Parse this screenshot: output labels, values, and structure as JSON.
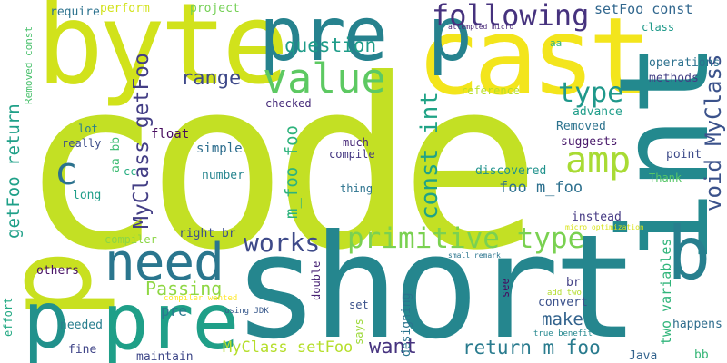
{
  "colors": {
    "background": "#ffffff",
    "lime": "#c3e024",
    "yellow": "#f3e51c",
    "teal": "#25868e",
    "green": "#2eb37c",
    "bright_green": "#5dc962",
    "purple": "#3f2f7f",
    "indigo": "#46327e",
    "blue": "#31668d",
    "yellow_green": "#a8db34"
  },
  "words": [
    {
      "text": "code",
      "color": "#c3e024"
    },
    {
      "text": "short",
      "color": "#25868e"
    },
    {
      "text": "byte",
      "color": "#d1e21b"
    },
    {
      "text": "cast",
      "color": "#f3e51c"
    },
    {
      "text": "int",
      "color": "#23898e"
    },
    {
      "text": "p",
      "color": "#c8e020"
    },
    {
      "text": "pre p",
      "color": "#26828e"
    },
    {
      "text": "pre",
      "color": "#1f9f88"
    },
    {
      "text": "p",
      "color": "#21918c"
    },
    {
      "text": "b",
      "color": "#277f8e"
    },
    {
      "text": "need",
      "color": "#2a768e"
    },
    {
      "text": "value",
      "color": "#5dc962"
    },
    {
      "text": "following",
      "color": "#46327e"
    },
    {
      "text": "amp",
      "color": "#a8db34"
    },
    {
      "text": "c",
      "color": "#2c728e"
    },
    {
      "text": "primitive type",
      "color": "#7ad151"
    },
    {
      "text": "works",
      "color": "#3e4a89"
    },
    {
      "text": "type",
      "color": "#1f988b"
    },
    {
      "text": "const int",
      "color": "#20a386"
    },
    {
      "text": "void MyClass",
      "color": "#3b528b"
    },
    {
      "text": "MyClass getFoo",
      "color": "#433e85"
    },
    {
      "text": "getFoo return",
      "color": "#1fa088"
    },
    {
      "text": "question",
      "color": "#1e9c89"
    },
    {
      "text": "range",
      "color": "#3e4989"
    },
    {
      "text": "m_foo foo",
      "color": "#2eb37c"
    },
    {
      "text": "foo m_foo",
      "color": "#2d708e"
    },
    {
      "text": "make",
      "color": "#33638d"
    },
    {
      "text": "return m_foo",
      "color": "#297b8e"
    },
    {
      "text": "want",
      "color": "#46337f"
    },
    {
      "text": "Passing",
      "color": "#8fd744"
    },
    {
      "text": "two variables",
      "color": "#31b57b"
    },
    {
      "text": "setFoo const",
      "color": "#31678e"
    },
    {
      "text": "MyClass setFoo",
      "color": "#b5de2b"
    },
    {
      "text": "pre",
      "color": "#2a788e"
    },
    {
      "text": "require",
      "color": "#2c728e"
    },
    {
      "text": "perform",
      "color": "#d2e21b"
    },
    {
      "text": "project",
      "color": "#74d055"
    },
    {
      "text": "Removed const",
      "color": "#4ac16d"
    },
    {
      "text": "attempted micro",
      "color": "#482878"
    },
    {
      "text": "aa",
      "color": "#35b779"
    },
    {
      "text": "class",
      "color": "#1f9a8a"
    },
    {
      "text": "operations",
      "color": "#2d718e"
    },
    {
      "text": "methods",
      "color": "#423f85"
    },
    {
      "text": "reference",
      "color": "#b8de29"
    },
    {
      "text": "advance",
      "color": "#1e9d89"
    },
    {
      "text": "Removed",
      "color": "#2c738e"
    },
    {
      "text": "suggests",
      "color": "#48186a"
    },
    {
      "text": "point",
      "color": "#3e4c8a"
    },
    {
      "text": "checked",
      "color": "#472c7a"
    },
    {
      "text": "lot",
      "color": "#287d8e"
    },
    {
      "text": "really",
      "color": "#3d4e8a"
    },
    {
      "text": "float",
      "color": "#460b5e"
    },
    {
      "text": "aa bb",
      "color": "#3fbc73"
    },
    {
      "text": "cc",
      "color": "#26ad81"
    },
    {
      "text": "simple",
      "color": "#2e6e8e"
    },
    {
      "text": "much",
      "color": "#482979"
    },
    {
      "text": "compile",
      "color": "#453882"
    },
    {
      "text": "number",
      "color": "#25848e"
    },
    {
      "text": "Thank",
      "color": "#56c667"
    },
    {
      "text": "discovered",
      "color": "#20928c"
    },
    {
      "text": "long",
      "color": "#1f9e89"
    },
    {
      "text": "thing",
      "color": "#2c738e"
    },
    {
      "text": "instead",
      "color": "#443983"
    },
    {
      "text": "micro optimization",
      "color": "#d8e219"
    },
    {
      "text": "compiler",
      "color": "#8bd646"
    },
    {
      "text": "right br",
      "color": "#3c4f8a"
    },
    {
      "text": "small remark",
      "color": "#2b758e"
    },
    {
      "text": "others",
      "color": "#471164"
    },
    {
      "text": "br",
      "color": "#424086"
    },
    {
      "text": "compiler wanted",
      "color": "#fde725"
    },
    {
      "text": "add two",
      "color": "#b2dd2d"
    },
    {
      "text": "convert",
      "color": "#3b518b"
    },
    {
      "text": "happens",
      "color": "#2e6d8e"
    },
    {
      "text": "double",
      "color": "#482374"
    },
    {
      "text": "set",
      "color": "#3b528b"
    },
    {
      "text": "see",
      "color": "#470d60"
    },
    {
      "text": "designing",
      "color": "#2b748e"
    },
    {
      "text": "using JDK",
      "color": "#38598c"
    },
    {
      "text": "says",
      "color": "#9dd93b"
    },
    {
      "text": "needed",
      "color": "#277e8e"
    },
    {
      "text": "true benefit",
      "color": "#24878e"
    },
    {
      "text": "effort",
      "color": "#23a983"
    },
    {
      "text": "fine",
      "color": "#404588"
    },
    {
      "text": "maintain",
      "color": "#3f4889"
    },
    {
      "text": "Java",
      "color": "#33638d"
    },
    {
      "text": "bb",
      "color": "#36b677"
    }
  ]
}
